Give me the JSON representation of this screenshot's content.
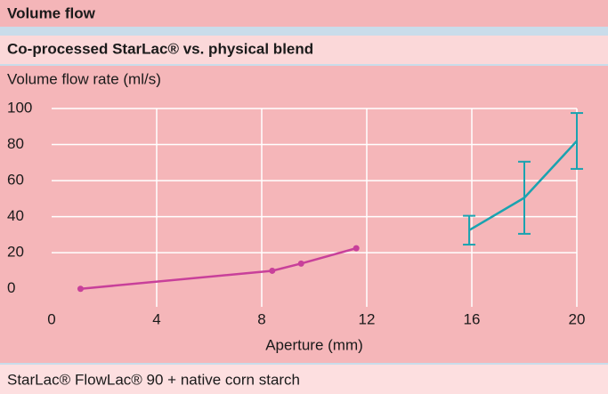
{
  "chart_data": {
    "type": "line",
    "title": "Volume flow",
    "subtitle": "Co-processed StarLac® vs. physical blend",
    "ylabel": "Volume flow rate (ml/s)",
    "xlabel": "Aperture (mm)",
    "xlim": [
      0,
      20
    ],
    "xticks": [
      0,
      4,
      8,
      12,
      16,
      20
    ],
    "ylim": [
      -10,
      100
    ],
    "yticks": [
      0,
      20,
      40,
      60,
      80,
      100
    ],
    "grid": true,
    "series": [
      {
        "name": "StarLac®",
        "color": "#c8409a",
        "markers": true,
        "x": [
          1.1,
          8.4,
          9.5,
          11.6
        ],
        "values": [
          0,
          10,
          14,
          22.5
        ]
      },
      {
        "name": "FlowLac® 90 + native corn starch",
        "color": "#1aa3b0",
        "markers": false,
        "x": [
          15.9,
          18,
          20
        ],
        "values": [
          32.5,
          50.5,
          82
        ],
        "errors": [
          8,
          20,
          15.5
        ]
      }
    ]
  }
}
